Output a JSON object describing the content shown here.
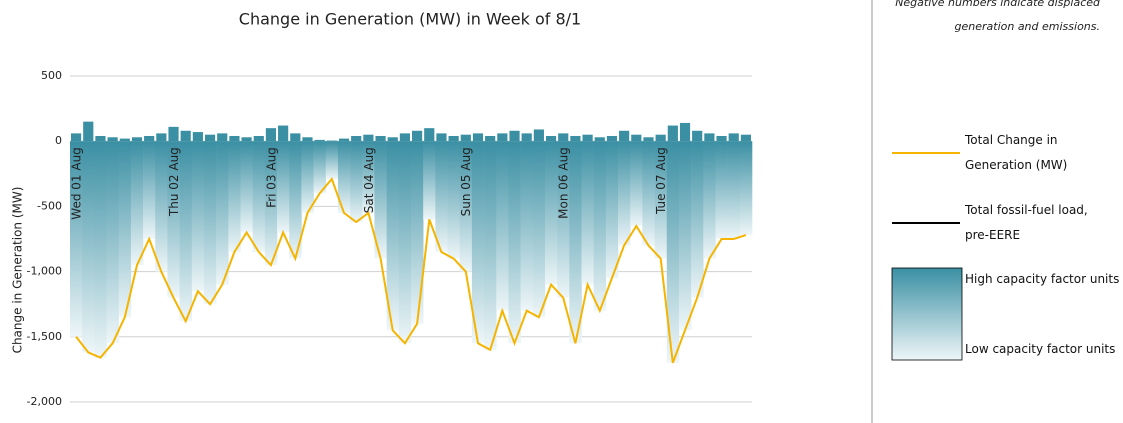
{
  "chart_data": {
    "type": "area_line",
    "title": "Change in Generation (MW) in Week of 8/1",
    "ylabel": "Change in Generation (MW)",
    "note": [
      "Negative numbers indicate displaced",
      "generation and emissions."
    ],
    "categories": [
      "Wed 01 Aug",
      null,
      null,
      null,
      null,
      null,
      null,
      null,
      "Thu 02 Aug",
      null,
      null,
      null,
      null,
      null,
      null,
      null,
      "Fri 03 Aug",
      null,
      null,
      null,
      null,
      null,
      null,
      null,
      "Sat 04 Aug",
      null,
      null,
      null,
      null,
      null,
      null,
      null,
      "Sun 05 Aug",
      null,
      null,
      null,
      null,
      null,
      null,
      null,
      "Mon 06 Aug",
      null,
      null,
      null,
      null,
      null,
      null,
      null,
      "Tue 07 Aug",
      null,
      null,
      null,
      null,
      null,
      null,
      null
    ],
    "series": [
      {
        "name": "Total Change in Generation (MW)",
        "color": "#f5b400",
        "values": [
          -1500,
          -1620,
          -1660,
          -1550,
          -1350,
          -950,
          -750,
          -1000,
          -1200,
          -1380,
          -1150,
          -1250,
          -1100,
          -850,
          -700,
          -850,
          -950,
          -700,
          -900,
          -550,
          -400,
          -290,
          -550,
          -620,
          -550,
          -900,
          -1450,
          -1550,
          -1400,
          -600,
          -850,
          -900,
          -1000,
          -1550,
          -1600,
          -1300,
          -1550,
          -1300,
          -1350,
          -1100,
          -1200,
          -1550,
          -1100,
          -1300,
          -1050,
          -800,
          -650,
          -800,
          -900,
          -1700,
          -1450,
          -1200,
          -900,
          -750,
          -750,
          -720
        ]
      }
    ],
    "positive_values": [
      60,
      150,
      40,
      30,
      20,
      30,
      40,
      60,
      110,
      80,
      70,
      50,
      60,
      40,
      30,
      40,
      100,
      120,
      60,
      30,
      10,
      5,
      20,
      40,
      50,
      40,
      30,
      60,
      80,
      100,
      60,
      40,
      50,
      60,
      40,
      60,
      80,
      60,
      90,
      40,
      60,
      40,
      50,
      30,
      40,
      80,
      50,
      30,
      50,
      120,
      140,
      80,
      60,
      40,
      60,
      50
    ],
    "bar_color": "#3a8fa3",
    "fossil_legend": {
      "name": "Total fossil-fuel load, pre-EERE",
      "color": "#000000"
    },
    "capacity_legend": {
      "high": "High capacity factor units",
      "low": "Low capacity factor units",
      "high_color": "#3a8fa3",
      "low_color": "#eef6f8"
    },
    "ylim": [
      -2000,
      500
    ],
    "yticks": [
      500,
      0,
      -500,
      {
        "value": -1000,
        "label": "-1,000"
      },
      {
        "value": -1500,
        "label": "-1,500"
      },
      {
        "value": -2000,
        "label": "-2,000"
      }
    ],
    "grid": true
  }
}
